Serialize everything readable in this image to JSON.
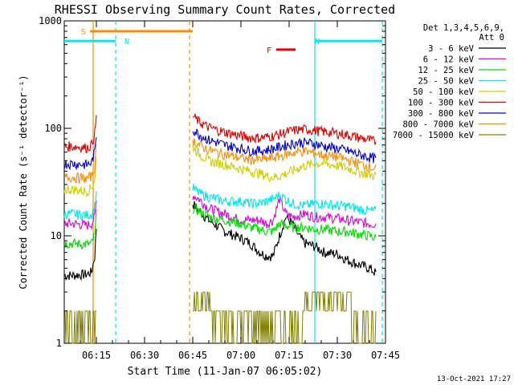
{
  "chart_data": {
    "type": "line",
    "title": "RHESSI Observing Summary Count Rates, Corrected",
    "xlabel": "Start Time (11-Jan-07 06:05:02)",
    "ylabel": "Corrected Count Rate (s⁻¹ detector⁻¹)",
    "yscale": "log",
    "ylim": [
      1,
      1000
    ],
    "xlim": [
      "06:05",
      "07:45"
    ],
    "x_ticks": [
      "06:15",
      "06:30",
      "06:45",
      "07:00",
      "07:15",
      "07:30",
      "07:45"
    ],
    "y_ticks": [
      "1",
      "10",
      "100",
      "1000"
    ],
    "grid": false,
    "legend": {
      "placement": "right",
      "header": [
        "Det 1,3,4,5,6,9,",
        "Att 0"
      ]
    },
    "x_minutes": [
      5,
      8,
      12,
      13.5,
      14.5,
      15,
      45,
      47,
      50,
      55,
      60,
      63,
      66,
      68,
      70,
      72,
      74,
      76,
      78,
      80,
      83,
      86,
      90,
      93,
      96,
      100,
      102
    ],
    "series": [
      {
        "name": "3 - 6 keV",
        "color": "#000000",
        "values": [
          4.3,
          4.3,
          4.4,
          4.6,
          6.5,
          12,
          20,
          17,
          14,
          11,
          9.5,
          8.5,
          7,
          6.5,
          6.5,
          10,
          15,
          13,
          10,
          8.5,
          8,
          7,
          6.8,
          6,
          5.5,
          5,
          4.5
        ]
      },
      {
        "name": "6 - 12 keV",
        "color": "#e000e0",
        "values": [
          13,
          13,
          12.5,
          13,
          15,
          21,
          24,
          22,
          18,
          16,
          14,
          14,
          14,
          13,
          14,
          22,
          16,
          15,
          15.5,
          16,
          15,
          15,
          14.5,
          14,
          13.5,
          13,
          13
        ]
      },
      {
        "name": "12 - 25 keV",
        "color": "#00dd00",
        "values": [
          8.5,
          8.5,
          8.3,
          8.5,
          10,
          16,
          18,
          17,
          15,
          14,
          13,
          12,
          11.5,
          11,
          11,
          13,
          12.5,
          12,
          12,
          12,
          11.5,
          11.5,
          11,
          11,
          10.5,
          10,
          9.5
        ]
      },
      {
        "name": "25 - 50 keV",
        "color": "#00e8e8",
        "values": [
          16,
          16,
          15.5,
          16,
          19,
          25,
          28,
          25,
          23,
          21,
          21,
          20,
          20,
          21,
          22,
          24,
          22,
          20,
          19.5,
          19,
          20,
          20,
          19,
          19,
          18,
          17,
          17
        ]
      },
      {
        "name": "50 - 100 keV",
        "color": "#d0d000",
        "values": [
          27,
          27,
          26,
          28,
          34,
          52,
          68,
          58,
          50,
          46,
          42,
          40,
          38,
          36,
          35,
          36,
          38,
          40,
          43,
          45,
          47,
          47,
          45,
          43,
          40,
          37,
          36
        ]
      },
      {
        "name": "100 - 300 keV",
        "color": "#e00000",
        "values": [
          68,
          68,
          66,
          70,
          90,
          125,
          130,
          115,
          102,
          92,
          85,
          82,
          82,
          83,
          85,
          88,
          92,
          95,
          97,
          98,
          96,
          93,
          90,
          87,
          83,
          78,
          75
        ]
      },
      {
        "name": "300 - 800 keV",
        "color": "#0000dd",
        "values": [
          47,
          47,
          46,
          48,
          60,
          88,
          98,
          88,
          78,
          70,
          65,
          62,
          62,
          63,
          65,
          67,
          70,
          72,
          74,
          74,
          72,
          68,
          65,
          62,
          58,
          54,
          52
        ]
      },
      {
        "name": "800 - 7000 keV",
        "color": "#ff8c00",
        "values": [
          35,
          35,
          34,
          36,
          44,
          66,
          78,
          70,
          63,
          57,
          53,
          51,
          51,
          52,
          53,
          55,
          57,
          59,
          61,
          61,
          59,
          56,
          54,
          51,
          48,
          44,
          42
        ]
      },
      {
        "name": "7000 - 15000 keV",
        "color": "#808000",
        "values": [
          2,
          2,
          2,
          2,
          2,
          2,
          4,
          3,
          2.5,
          2,
          2,
          2,
          2,
          2,
          2,
          2,
          2,
          2,
          2,
          2.5,
          2.8,
          2.5,
          2.5,
          2.8,
          2,
          2,
          2
        ]
      }
    ],
    "flags": [
      {
        "label": "S",
        "color": "#ff8c00",
        "start": "06:13",
        "end": "06:45",
        "y": 800
      },
      {
        "label": "N",
        "color": "#00e8e8",
        "start": "06:05",
        "end": "06:21",
        "y": 650
      },
      {
        "label": "N",
        "color": "#00e8e8",
        "start": "07:23",
        "end": "07:44",
        "y": 650
      },
      {
        "label": "F",
        "color": "#e00000",
        "start": "07:11",
        "end": "07:17",
        "y": 540
      }
    ],
    "markers": [
      {
        "time": "06:14",
        "color": "#ff8c00",
        "style": "solid"
      },
      {
        "time": "06:44",
        "color": "#ff8c00",
        "style": "dashed"
      },
      {
        "time": "06:21",
        "color": "#00e8e8",
        "style": "dashed"
      },
      {
        "time": "07:23",
        "color": "#00e8e8",
        "style": "solid"
      },
      {
        "time": "07:44",
        "color": "#00e8e8",
        "style": "dashed"
      }
    ],
    "data_gap": [
      "06:15",
      "06:45"
    ]
  },
  "footer": {
    "timestamp": "13-Oct-2021 17:27"
  }
}
